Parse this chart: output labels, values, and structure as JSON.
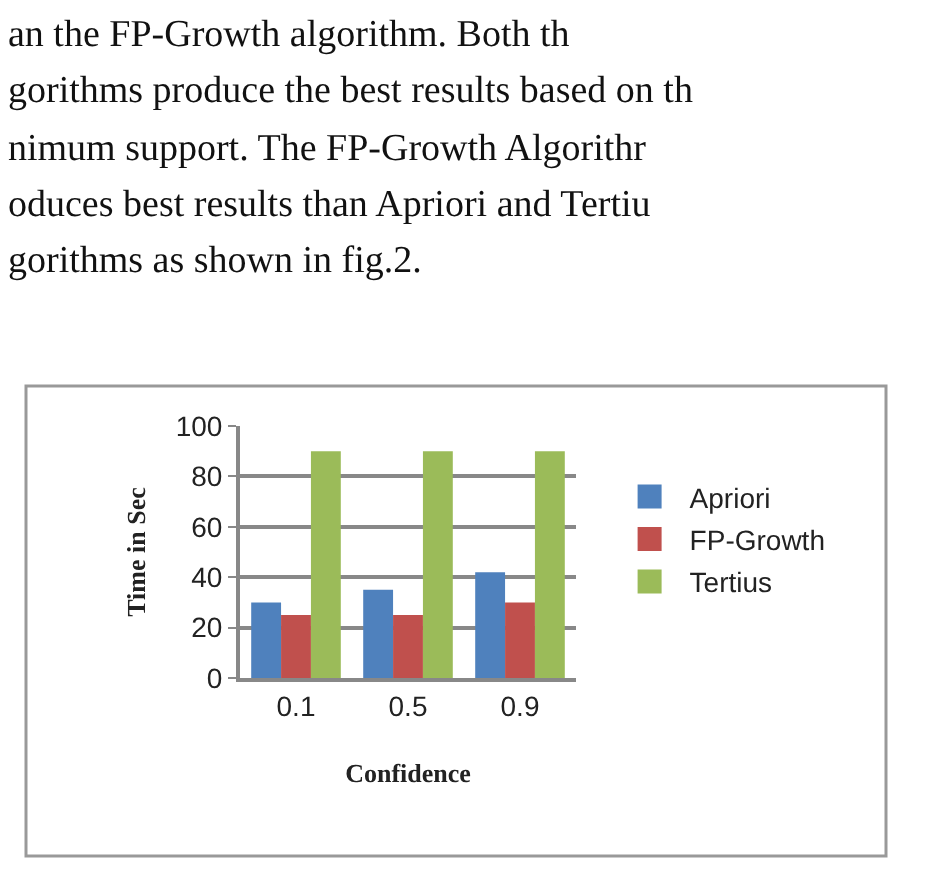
{
  "chart_data": {
    "type": "bar",
    "xlabel": "Confidence",
    "ylabel": "Time in Sec",
    "categories": [
      "0.1",
      "0.5",
      "0.9"
    ],
    "series": [
      {
        "name": "Apriori",
        "color": "#4f81bd",
        "values": [
          30,
          35,
          42
        ]
      },
      {
        "name": "FP-Growth",
        "color": "#c0504d",
        "values": [
          25,
          25,
          30
        ]
      },
      {
        "name": "Tertius",
        "color": "#9bbb59",
        "values": [
          90,
          90,
          90
        ]
      }
    ],
    "ylim": [
      0,
      100
    ],
    "yticks": [
      0,
      20,
      40,
      60,
      80,
      100
    ],
    "grid": "y",
    "legend": "right",
    "annotations": [
      "an the FP-Growth algorithm. Both th",
      "gorithms produce the best results based on th",
      "nimum support. The FP-Growth Algorithr",
      "oduces best results than Apriori and Tertiu",
      "gorithms as shown in fig.2."
    ]
  }
}
